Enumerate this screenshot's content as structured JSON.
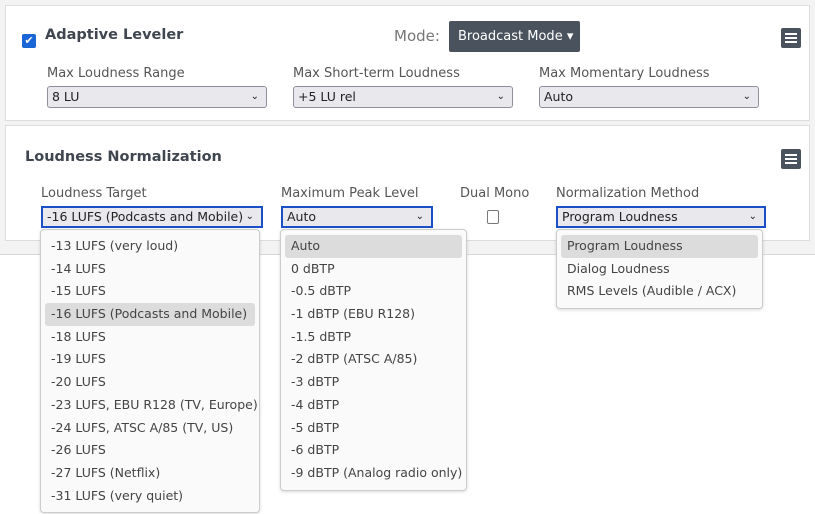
{
  "leveler": {
    "enabled": true,
    "title": "Adaptive Leveler",
    "mode_label": "Mode:",
    "mode_value": "Broadcast Mode",
    "fields": [
      {
        "label": "Max Loudness Range",
        "value": "8 LU"
      },
      {
        "label": "Max Short-term Loudness",
        "value": "+5 LU rel"
      },
      {
        "label": "Max Momentary Loudness",
        "value": "Auto"
      }
    ]
  },
  "normalization": {
    "title": "Loudness Normalization",
    "loudness_target": {
      "label": "Loudness Target",
      "value": "-16 LUFS (Podcasts and Mobile)",
      "options": [
        "-13 LUFS (very loud)",
        "-14 LUFS",
        "-15 LUFS",
        "-16 LUFS (Podcasts and Mobile)",
        "-18 LUFS",
        "-19 LUFS",
        "-20 LUFS",
        "-23 LUFS, EBU R128 (TV, Europe)",
        "-24 LUFS, ATSC A/85 (TV, US)",
        "-26 LUFS",
        "-27 LUFS (Netflix)",
        "-31 LUFS (very quiet)"
      ]
    },
    "max_peak": {
      "label": "Maximum Peak Level",
      "value": "Auto",
      "options": [
        "Auto",
        "0 dBTP",
        "-0.5 dBTP",
        "-1 dBTP (EBU R128)",
        "-1.5 dBTP",
        "-2 dBTP (ATSC A/85)",
        "-3 dBTP",
        "-4 dBTP",
        "-5 dBTP",
        "-6 dBTP",
        "-9 dBTP (Analog radio only)"
      ]
    },
    "dual_mono": {
      "label": "Dual Mono",
      "checked": false
    },
    "method": {
      "label": "Normalization Method",
      "value": "Program Loudness",
      "options": [
        "Program Loudness",
        "Dialog Loudness",
        "RMS Levels (Audible / ACX)"
      ]
    }
  },
  "colors": {
    "accent": "#1a4fc8",
    "button_dark": "#4a525d"
  }
}
